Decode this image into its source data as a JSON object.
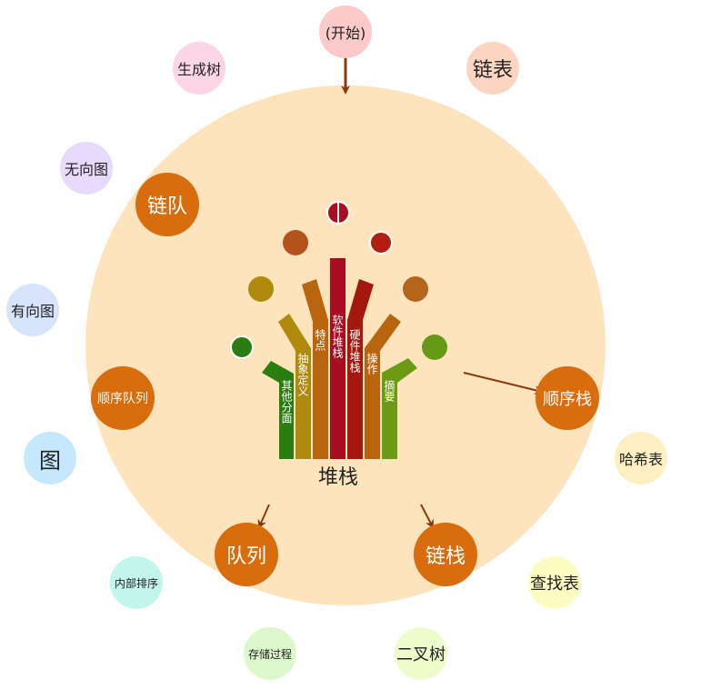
{
  "colors": {
    "main_circle": "#fde4bc",
    "inner_node": "#d96d0e",
    "arrow": "#8a3a10",
    "bar_colors": [
      "#2a7d0f",
      "#b08a0c",
      "#b9650e",
      "#a80e20",
      "#a3190d",
      "#b9650e",
      "#6c9a14"
    ],
    "dot_colors": [
      "#2a7d0f",
      "#b08a0c",
      "#b4531b",
      "#a80e20",
      "#b01f10",
      "#b4641b",
      "#659a16"
    ]
  },
  "center": {
    "title": "堆栈",
    "bars": [
      {
        "label": "其他分面",
        "icon": "bar-other-aspects"
      },
      {
        "label": "抽象定义",
        "icon": "bar-abstract-definition"
      },
      {
        "label": "特点",
        "icon": "bar-features"
      },
      {
        "label": "软件堆栈",
        "icon": "bar-software-stack"
      },
      {
        "label": "硬件堆栈",
        "icon": "bar-hardware-stack"
      },
      {
        "label": "操作",
        "icon": "bar-operations"
      },
      {
        "label": "摘要",
        "icon": "bar-summary"
      }
    ]
  },
  "inner_nodes": [
    {
      "label": "链队"
    },
    {
      "label": "顺序队列"
    },
    {
      "label": "队列"
    },
    {
      "label": "链栈"
    },
    {
      "label": "顺序栈"
    }
  ],
  "outer_nodes": [
    {
      "label": "(开始)",
      "color": "#fccaca"
    },
    {
      "label": "链表",
      "color": "#fcd5c2"
    },
    {
      "label": "生成树",
      "color": "#fcd6e6"
    },
    {
      "label": "无向图",
      "color": "#e8dafc"
    },
    {
      "label": "有向图",
      "color": "#d7e4fc"
    },
    {
      "label": "图",
      "color": "#c5e8fc"
    },
    {
      "label": "内部排序",
      "color": "#c2f5ec"
    },
    {
      "label": "存储过程",
      "color": "#dcf8cc"
    },
    {
      "label": "二叉树",
      "color": "#eefccc"
    },
    {
      "label": "查找表",
      "color": "#fcfcc2"
    },
    {
      "label": "哈希表",
      "color": "#fcf0c2"
    }
  ]
}
